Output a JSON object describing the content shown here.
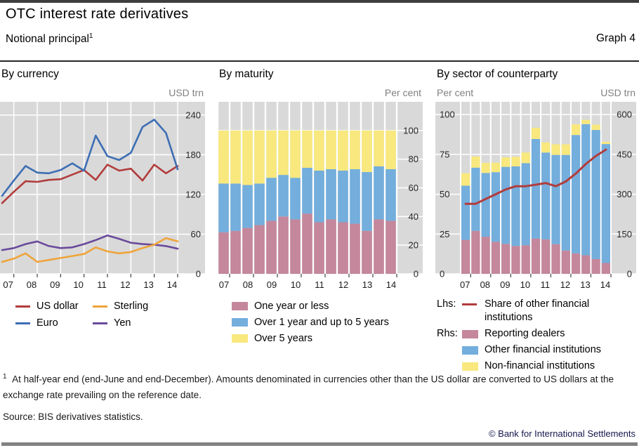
{
  "page": {
    "title": "OTC interest rate derivatives",
    "subtitle": "Notional principal",
    "footnote_marker": "1",
    "graph_label": "Graph 4",
    "footnote": "At half-year end (end-June and end-December). Amounts denominated in currencies other than the US dollar are converted to US dollars at the exchange rate prevailing on the reference date.",
    "source": "Source: BIS derivatives statistics.",
    "copyright": "© Bank for International Settlements"
  },
  "colors": {
    "plot_bg": "#d9d9d9",
    "gridline": "#ffffff",
    "us_dollar": "#b23c3c",
    "euro": "#3d6eb4",
    "sterling": "#efa43a",
    "yen": "#694a9b",
    "bar_pink": "#c4879c",
    "bar_blue": "#73aedd",
    "bar_yellow": "#f8e87e",
    "sector_line": "#b23c3c",
    "axis_text": "#262626",
    "unit_text": "#808080",
    "tick_mark": "#404040",
    "top_bar": "#3d3d3d",
    "bottom_bar": "#828282",
    "copyright_text": "#15154d"
  },
  "chart_data": [
    {
      "id": "by-currency",
      "type": "line",
      "title": "By currency",
      "unit_right": "USD trn",
      "x_tick_labels": [
        "07",
        "08",
        "09",
        "10",
        "11",
        "12",
        "13",
        "14"
      ],
      "points_per_year": 2,
      "y_axis": {
        "ticks": [
          0,
          60,
          120,
          180,
          240
        ],
        "max": 260
      },
      "series": [
        {
          "name": "US dollar",
          "color_key": "us_dollar",
          "values": [
            107,
            124,
            140,
            139,
            142,
            143,
            150,
            157,
            142,
            165,
            156,
            159,
            141,
            165,
            152,
            163
          ]
        },
        {
          "name": "Euro",
          "color_key": "euro",
          "values": [
            118,
            141,
            163,
            153,
            152,
            157,
            167,
            156,
            209,
            178,
            172,
            183,
            222,
            233,
            213,
            158
          ]
        },
        {
          "name": "Sterling",
          "color_key": "sterling",
          "values": [
            18,
            23,
            31,
            18,
            21,
            24,
            27,
            30,
            40,
            34,
            31,
            33,
            39,
            44,
            54,
            49
          ]
        },
        {
          "name": "Yen",
          "color_key": "yen",
          "values": [
            36,
            39,
            45,
            49,
            42,
            39,
            40,
            45,
            51,
            58,
            53,
            47,
            45,
            44,
            42,
            38
          ]
        }
      ]
    },
    {
      "id": "by-maturity",
      "type": "stacked-bar",
      "title": "By maturity",
      "unit_right": "Per cent",
      "x_tick_labels": [
        "07",
        "08",
        "09",
        "10",
        "11",
        "12",
        "13",
        "14"
      ],
      "y_axis": {
        "ticks": [
          0,
          20,
          40,
          60,
          80,
          100
        ],
        "max": 120
      },
      "series": [
        {
          "name": "One year or less",
          "color_key": "bar_pink",
          "values": [
            29,
            30,
            32,
            34,
            37,
            40,
            38,
            42,
            36,
            38,
            36,
            35,
            30,
            38,
            37
          ]
        },
        {
          "name": "Over 1 year and up to 5 years",
          "color_key": "bar_blue",
          "values": [
            34,
            33,
            30,
            29,
            30,
            29,
            29,
            32,
            36,
            35,
            36,
            38,
            41,
            37,
            36
          ]
        },
        {
          "name": "Over 5 years",
          "color_key": "bar_yellow",
          "values": [
            37,
            37,
            38,
            37,
            33,
            31,
            33,
            26,
            28,
            27,
            28,
            27,
            29,
            25,
            27
          ]
        }
      ]
    },
    {
      "id": "by-sector",
      "type": "stacked-bar-line",
      "title": "By sector of counterparty",
      "unit_left": "Per cent",
      "unit_right": "USD trn",
      "x_tick_labels": [
        "07",
        "08",
        "09",
        "10",
        "11",
        "12",
        "13",
        "14"
      ],
      "y_axis_left": {
        "ticks": [
          0,
          25,
          50,
          75,
          100
        ],
        "max": 108
      },
      "y_axis_right": {
        "ticks": [
          0,
          150,
          300,
          450,
          600
        ],
        "max": 648
      },
      "legend_prefix_line": "Lhs:",
      "legend_prefix_bars": "Rhs:",
      "line_series": {
        "name": "Share of other financial institutions",
        "color_key": "sector_line",
        "axis": "left",
        "values": [
          44,
          44,
          47,
          50,
          53,
          55,
          55,
          56,
          57,
          55,
          58,
          63,
          69,
          74,
          78
        ]
      },
      "bar_series": [
        {
          "name": "Reporting dealers",
          "color_key": "bar_pink",
          "values": [
            128,
            162,
            140,
            121,
            113,
            105,
            108,
            133,
            130,
            112,
            88,
            77,
            70,
            56,
            41
          ]
        },
        {
          "name": "Other financial institutions",
          "color_key": "bar_blue",
          "values": [
            204,
            238,
            240,
            262,
            290,
            300,
            309,
            375,
            327,
            336,
            360,
            446,
            494,
            486,
            448
          ]
        },
        {
          "name": "Non-financial institutions",
          "color_key": "bar_yellow",
          "values": [
            47,
            42,
            38,
            36,
            36,
            36,
            40,
            42,
            38,
            40,
            40,
            40,
            16,
            20,
            8
          ]
        }
      ]
    }
  ]
}
